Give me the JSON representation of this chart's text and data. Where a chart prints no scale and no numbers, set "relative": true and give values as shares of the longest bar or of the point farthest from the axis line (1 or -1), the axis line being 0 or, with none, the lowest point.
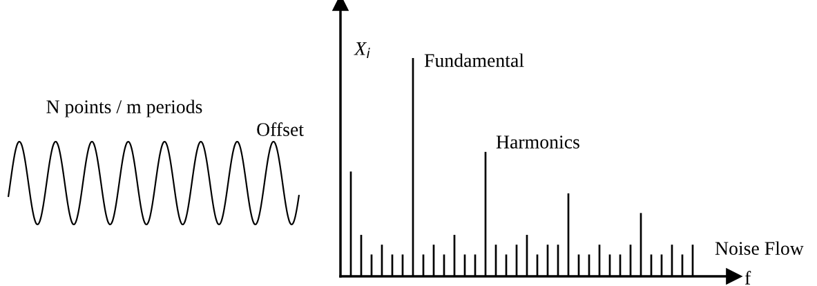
{
  "chart_data": {
    "type": "bar",
    "relative": true,
    "categories": [
      null,
      null,
      null,
      null,
      null,
      null,
      null,
      null,
      null,
      null,
      null,
      null,
      null,
      null,
      null,
      null,
      null,
      null,
      null,
      null,
      null,
      null,
      null,
      null,
      null,
      null,
      null,
      null,
      null,
      null,
      null,
      null,
      null,
      null
    ],
    "values": [
      0.48,
      0.19,
      0.1,
      0.145,
      0.1,
      0.1,
      1.0,
      0.1,
      0.145,
      0.1,
      0.19,
      0.1,
      0.1,
      0.57,
      0.145,
      0.1,
      0.145,
      0.19,
      0.1,
      0.145,
      0.145,
      0.38,
      0.1,
      0.1,
      0.145,
      0.1,
      0.1,
      0.145,
      0.29,
      0.1,
      0.1,
      0.145,
      0.1,
      0.145
    ],
    "color": "#000000",
    "xlabel": "f",
    "ylabel": "X$_{i}$",
    "annotations": [
      "Fundamental",
      "Harmonics",
      "Offset",
      "Noise Flow",
      "N points / m periods"
    ],
    "grid": false,
    "legend": false
  }
}
